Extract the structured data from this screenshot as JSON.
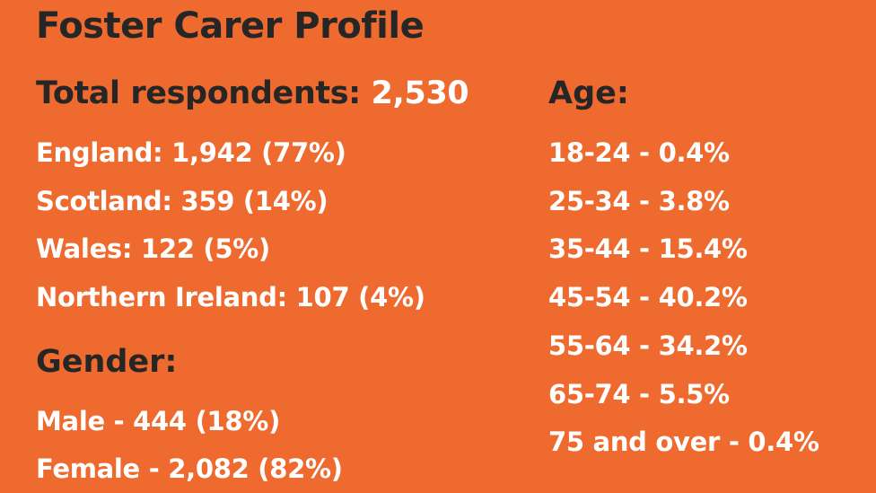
{
  "title": "Foster Carer Profile",
  "total": {
    "label": "Total respondents:",
    "value": "2,530"
  },
  "regions": [
    "England: 1,942 (77%)",
    "Scotland: 359 (14%)",
    "Wales: 122 (5%)",
    "Northern Ireland: 107 (4%)"
  ],
  "gender": {
    "heading": "Gender:",
    "items": [
      "Male - 444 (18%)",
      "Female - 2,082 (82%)"
    ]
  },
  "age": {
    "heading": "Age:",
    "items": [
      "18-24 - 0.4%",
      "25-34 - 3.8%",
      "35-44 - 15.4%",
      "45-54 - 40.2%",
      "55-64 - 34.2%",
      "65-74 - 5.5%",
      "75 and over - 0.4%"
    ]
  },
  "colors": {
    "background": "#ee6a2e",
    "heading": "#262626",
    "text": "#ffffff"
  }
}
